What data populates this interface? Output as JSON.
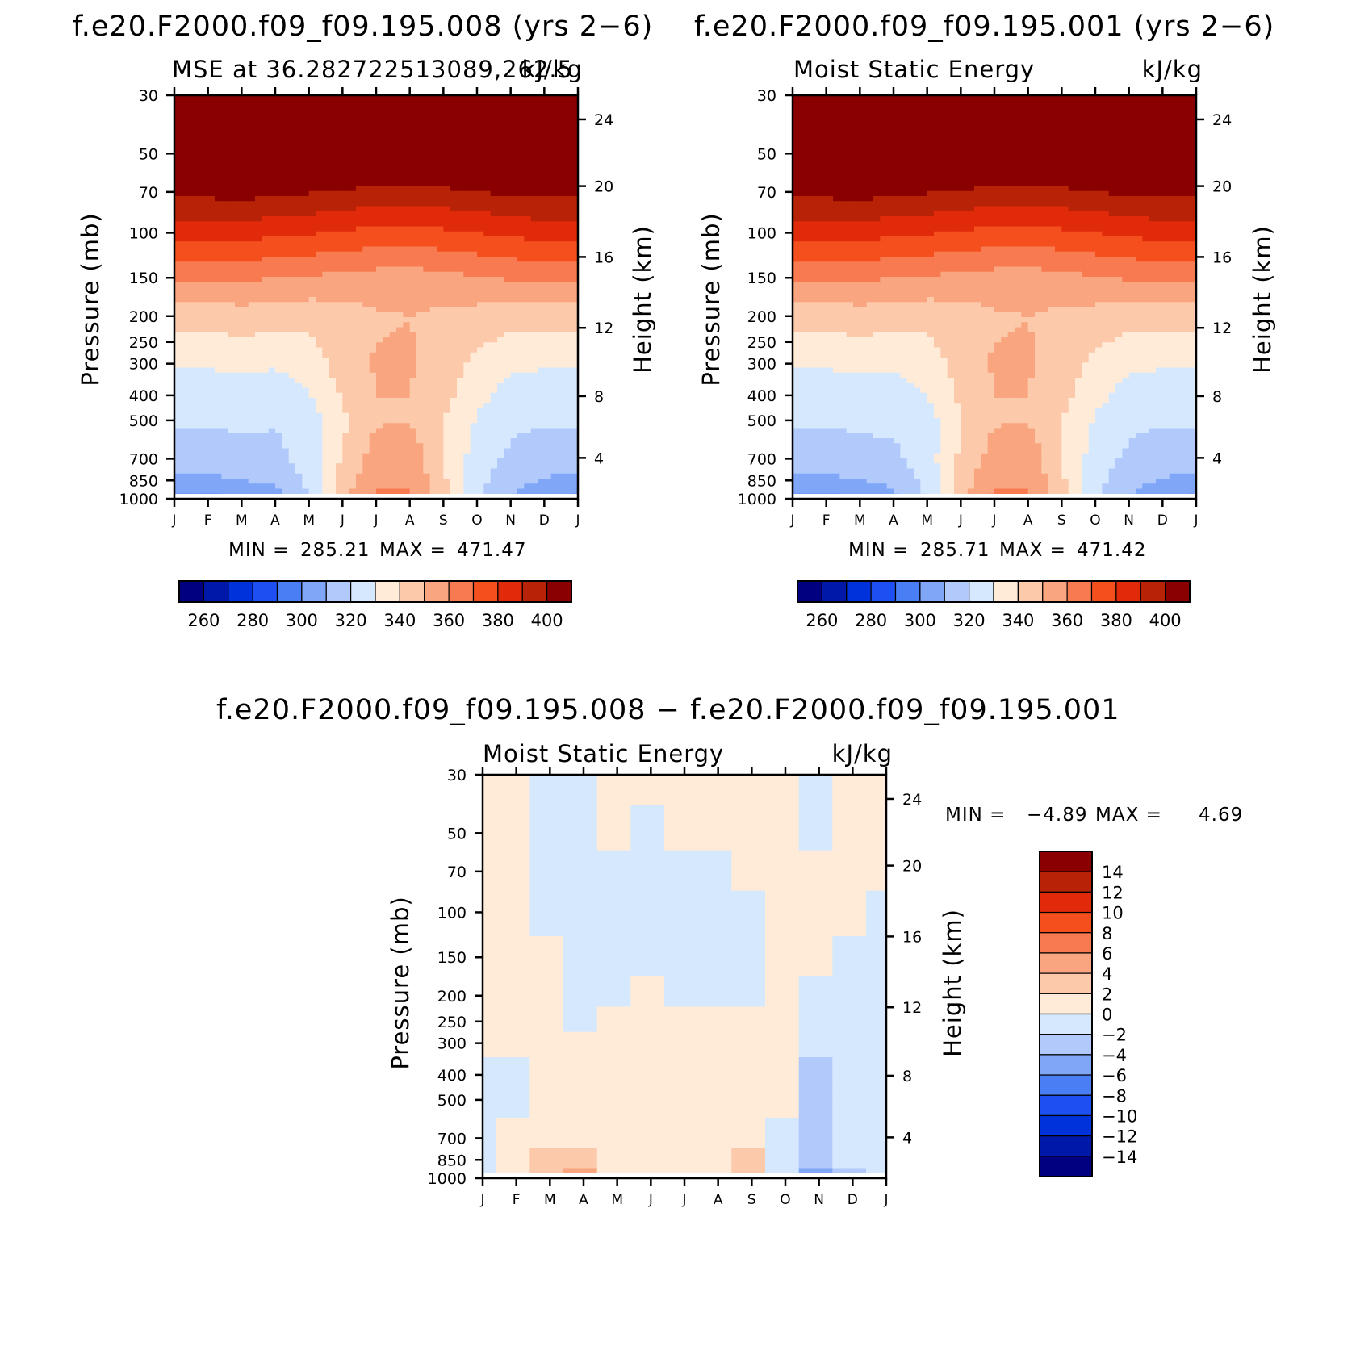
{
  "colors": {
    "mse_palette": [
      "#000080",
      "#0018a8",
      "#0032dc",
      "#1e4ff2",
      "#4a7ef5",
      "#7fa6f7",
      "#b1c9fb",
      "#d6e8fd",
      "#ffebd8",
      "#fcc9ab",
      "#f9a57f",
      "#f87a50",
      "#f54f1e",
      "#e02a0a",
      "#b82206",
      "#8a0000"
    ],
    "diff_palette": [
      "#000080",
      "#0018a8",
      "#0032dc",
      "#1e4ff2",
      "#4a7ef5",
      "#7fa6f7",
      "#b1c9fb",
      "#d6e8fd",
      "#ffebd8",
      "#fcc9ab",
      "#f9a57f",
      "#f87a50",
      "#f54f1e",
      "#e02a0a",
      "#b82206",
      "#8a0000"
    ]
  },
  "chart_data": [
    {
      "type": "heatmap",
      "title": "f.e20.F2000.f09_f09.195.008 (yrs 2−6)",
      "subtitle_left": "MSE at 36.282722513089,262.5",
      "subtitle_right": "kJ/kg",
      "ylabel": "Pressure (mb)",
      "y2label": "Height (km)",
      "x_ticks": [
        "J",
        "F",
        "M",
        "A",
        "M",
        "J",
        "J",
        "A",
        "S",
        "O",
        "N",
        "D",
        "J"
      ],
      "y_ticks": [
        "30",
        "50",
        "70",
        "100",
        "150",
        "200",
        "250",
        "300",
        "400",
        "500",
        "700",
        "850",
        "1000"
      ],
      "y_tick_values": [
        30,
        50,
        70,
        100,
        150,
        200,
        250,
        300,
        400,
        500,
        700,
        850,
        1000
      ],
      "y2_ticks": [
        "24",
        "20",
        "16",
        "12",
        "8",
        "4"
      ],
      "y2_tick_values": [
        24,
        20,
        16,
        12,
        8,
        4
      ],
      "ylim": [
        1000,
        30
      ],
      "min_label": "MIN = ",
      "min_value": "285.21",
      "max_label": "MAX = ",
      "max_value": "471.47",
      "legend_ticks": [
        "260",
        "280",
        "300",
        "320",
        "340",
        "360",
        "380",
        "400"
      ],
      "field": {
        "levels": [
          30,
          40,
          55,
          70,
          100,
          150,
          200,
          300,
          400,
          500,
          600,
          700,
          850,
          950,
          1000
        ],
        "months": [
          1,
          2,
          3,
          4,
          5,
          6,
          7,
          8,
          9,
          10,
          11,
          12,
          13
        ],
        "values": [
          [
            475,
            475,
            475,
            475,
            475,
            475,
            475,
            475,
            475,
            475,
            475,
            475,
            475
          ],
          [
            440,
            440,
            440,
            440,
            440,
            440,
            440,
            440,
            440,
            440,
            440,
            440,
            440
          ],
          [
            402,
            402,
            402,
            402,
            402,
            402,
            402,
            402,
            402,
            402,
            402,
            402,
            402
          ],
          [
            393,
            393,
            394,
            392,
            391,
            389,
            387,
            387,
            388,
            390,
            392,
            393,
            393
          ],
          [
            374,
            374,
            375,
            372,
            371,
            369,
            367,
            367,
            368,
            370,
            372,
            374,
            374
          ],
          [
            352,
            351,
            352,
            350,
            349,
            347,
            346,
            345,
            347,
            349,
            351,
            352,
            352
          ],
          [
            334,
            334,
            335,
            334,
            333,
            335,
            339,
            340,
            338,
            336,
            334,
            334,
            334
          ],
          [
            321,
            321,
            322,
            321,
            324,
            335,
            341,
            341,
            336,
            327,
            322,
            321,
            321
          ],
          [
            315,
            315,
            316,
            315,
            319,
            331,
            340,
            340,
            333,
            323,
            316,
            315,
            315
          ],
          [
            311,
            311,
            312,
            311,
            315,
            328,
            339,
            340,
            330,
            319,
            312,
            311,
            311
          ],
          [
            308,
            308,
            309,
            309,
            314,
            329,
            342,
            343,
            330,
            317,
            310,
            308,
            308
          ],
          [
            305,
            305,
            306,
            307,
            314,
            331,
            345,
            347,
            331,
            315,
            308,
            305,
            305
          ],
          [
            298,
            298,
            300,
            302,
            312,
            334,
            349,
            349,
            332,
            313,
            304,
            299,
            298
          ],
          [
            292,
            291,
            294,
            298,
            311,
            336,
            351,
            351,
            333,
            313,
            301,
            294,
            292
          ],
          [
            288,
            287,
            290,
            295,
            310,
            336,
            352,
            352,
            333,
            312,
            299,
            290,
            288
          ]
        ]
      }
    },
    {
      "type": "heatmap",
      "title": "f.e20.F2000.f09_f09.195.001 (yrs 2−6)",
      "subtitle_left": "Moist Static Energy",
      "subtitle_right": "kJ/kg",
      "ylabel": "Pressure (mb)",
      "y2label": "Height (km)",
      "x_ticks": [
        "J",
        "F",
        "M",
        "A",
        "M",
        "J",
        "J",
        "A",
        "S",
        "O",
        "N",
        "D",
        "J"
      ],
      "y_ticks": [
        "30",
        "50",
        "70",
        "100",
        "150",
        "200",
        "250",
        "300",
        "400",
        "500",
        "700",
        "850",
        "1000"
      ],
      "y_tick_values": [
        30,
        50,
        70,
        100,
        150,
        200,
        250,
        300,
        400,
        500,
        700,
        850,
        1000
      ],
      "y2_ticks": [
        "24",
        "20",
        "16",
        "12",
        "8",
        "4"
      ],
      "y2_tick_values": [
        24,
        20,
        16,
        12,
        8,
        4
      ],
      "ylim": [
        1000,
        30
      ],
      "min_label": "MIN = ",
      "min_value": "285.71",
      "max_label": "MAX = ",
      "max_value": "471.42",
      "legend_ticks": [
        "260",
        "280",
        "300",
        "320",
        "340",
        "360",
        "380",
        "400"
      ],
      "field": {
        "levels": [
          30,
          40,
          55,
          70,
          100,
          150,
          200,
          300,
          400,
          500,
          600,
          700,
          850,
          950,
          1000
        ],
        "months": [
          1,
          2,
          3,
          4,
          5,
          6,
          7,
          8,
          9,
          10,
          11,
          12,
          13
        ],
        "values": [
          [
            475,
            475,
            475,
            475,
            475,
            475,
            475,
            475,
            475,
            475,
            475,
            475,
            475
          ],
          [
            440,
            440,
            440,
            440,
            440,
            440,
            440,
            440,
            440,
            440,
            440,
            440,
            440
          ],
          [
            402,
            402,
            402,
            402,
            402,
            402,
            402,
            402,
            402,
            402,
            402,
            402,
            402
          ],
          [
            393,
            393,
            394,
            392,
            391,
            389,
            387,
            387,
            388,
            390,
            392,
            393,
            393
          ],
          [
            374,
            374,
            375,
            372,
            371,
            369,
            367,
            367,
            368,
            370,
            372,
            374,
            374
          ],
          [
            352,
            351,
            352,
            350,
            349,
            347,
            346,
            345,
            347,
            349,
            351,
            352,
            352
          ],
          [
            334,
            334,
            335,
            334,
            333,
            335,
            339,
            340,
            338,
            336,
            334,
            334,
            334
          ],
          [
            321,
            321,
            322,
            321,
            324,
            335,
            341,
            341,
            336,
            327,
            322,
            321,
            321
          ],
          [
            315,
            315,
            316,
            316,
            320,
            332,
            340,
            340,
            333,
            323,
            316,
            315,
            315
          ],
          [
            311,
            311,
            312,
            312,
            316,
            329,
            339,
            340,
            330,
            319,
            312,
            311,
            311
          ],
          [
            308,
            308,
            309,
            310,
            315,
            330,
            342,
            343,
            330,
            317,
            310,
            308,
            308
          ],
          [
            305,
            305,
            306,
            308,
            315,
            332,
            345,
            347,
            331,
            315,
            308,
            305,
            305
          ],
          [
            298,
            298,
            300,
            303,
            313,
            334,
            349,
            349,
            332,
            313,
            304,
            299,
            298
          ],
          [
            292,
            291,
            294,
            299,
            312,
            336,
            351,
            351,
            333,
            313,
            301,
            294,
            292
          ],
          [
            288,
            287,
            290,
            295,
            311,
            336,
            352,
            352,
            333,
            312,
            299,
            290,
            288
          ]
        ]
      }
    },
    {
      "type": "heatmap",
      "title": "f.e20.F2000.f09_f09.195.008 − f.e20.F2000.f09_f09.195.001",
      "subtitle_left": "Moist Static Energy",
      "subtitle_right": "kJ/kg",
      "ylabel": "Pressure (mb)",
      "y2label": "Height (km)",
      "x_ticks": [
        "J",
        "F",
        "M",
        "A",
        "M",
        "J",
        "J",
        "A",
        "S",
        "O",
        "N",
        "D",
        "J"
      ],
      "y_ticks": [
        "30",
        "50",
        "70",
        "100",
        "150",
        "200",
        "250",
        "300",
        "400",
        "500",
        "700",
        "850",
        "1000"
      ],
      "y_tick_values": [
        30,
        50,
        70,
        100,
        150,
        200,
        250,
        300,
        400,
        500,
        700,
        850,
        1000
      ],
      "y2_ticks": [
        "24",
        "20",
        "16",
        "12",
        "8",
        "4"
      ],
      "y2_tick_values": [
        24,
        20,
        16,
        12,
        8,
        4
      ],
      "ylim": [
        1000,
        30
      ],
      "min_label": "MIN = ",
      "min_value": "−4.89",
      "max_label": "MAX = ",
      "max_value": "4.69",
      "legend_ticks": [
        "14",
        "12",
        "10",
        "8",
        "6",
        "4",
        "2",
        "0",
        "−2",
        "−4",
        "−6",
        "−8",
        "−10",
        "−12",
        "−14"
      ],
      "field": {
        "levels": [
          30,
          50,
          70,
          100,
          150,
          200,
          250,
          300,
          400,
          500,
          700,
          850,
          950,
          1000
        ],
        "months": [
          1,
          2,
          3,
          4,
          5,
          6,
          7,
          8,
          9,
          10,
          11,
          12,
          13
        ],
        "values": [
          [
            0.5,
            0.5,
            -0.5,
            -0.5,
            0.5,
            0.5,
            0.5,
            0.5,
            0.5,
            0.5,
            -0.5,
            0.5,
            0.5
          ],
          [
            0.5,
            0.5,
            -0.5,
            -0.5,
            0.5,
            -0.5,
            0.5,
            0.5,
            0.5,
            0.5,
            -0.5,
            0.5,
            0.5
          ],
          [
            0.5,
            0.5,
            -0.5,
            -0.5,
            -0.5,
            -0.5,
            -0.5,
            -0.5,
            0.5,
            0.5,
            0.5,
            0.5,
            0.5
          ],
          [
            0.5,
            0.5,
            -0.5,
            -0.5,
            -0.5,
            -0.5,
            -0.5,
            -0.5,
            -0.5,
            0.5,
            0.5,
            0.5,
            -0.5
          ],
          [
            0.5,
            0.5,
            0.5,
            -0.5,
            -0.5,
            -0.5,
            -0.5,
            -0.5,
            -0.5,
            0.5,
            0.5,
            -0.5,
            -0.5
          ],
          [
            0.5,
            0.5,
            0.5,
            -0.5,
            -0.5,
            0.5,
            -0.5,
            -0.5,
            -0.5,
            0.5,
            -0.5,
            -0.5,
            -0.5
          ],
          [
            0.5,
            0.5,
            0.5,
            -0.5,
            0.5,
            0.5,
            0.5,
            0.5,
            0.5,
            0.5,
            -0.5,
            -0.5,
            -0.5
          ],
          [
            0.5,
            0.5,
            0.5,
            0.5,
            0.5,
            0.5,
            0.5,
            0.5,
            0.5,
            0.5,
            -0.5,
            -0.5,
            -0.5
          ],
          [
            -0.5,
            -0.5,
            0.5,
            0.5,
            0.5,
            0.5,
            0.5,
            0.5,
            0.5,
            0.5,
            -2.5,
            -0.5,
            -0.5
          ],
          [
            -0.5,
            -0.5,
            0.5,
            0.5,
            0.5,
            0.5,
            0.5,
            0.5,
            0.5,
            0.5,
            -2.5,
            -0.5,
            -0.5
          ],
          [
            -0.5,
            0.5,
            0.5,
            0.5,
            0.5,
            0.5,
            0.5,
            0.5,
            0.5,
            -0.5,
            -2.5,
            -0.5,
            -0.5
          ],
          [
            -0.5,
            0.5,
            2.5,
            2.5,
            0.5,
            0.5,
            0.5,
            0.5,
            2.5,
            -0.5,
            -2.5,
            -0.5,
            -0.5
          ],
          [
            -0.5,
            0.5,
            2.5,
            4.5,
            0.5,
            0.5,
            0.5,
            0.5,
            2.5,
            -0.5,
            -4.5,
            -2.5,
            -0.5
          ],
          [
            -0.5,
            0.5,
            2.5,
            2.5,
            0.5,
            0.5,
            0.5,
            0.5,
            2.5,
            -0.5,
            -2.5,
            -0.5,
            -0.5
          ]
        ]
      }
    }
  ]
}
